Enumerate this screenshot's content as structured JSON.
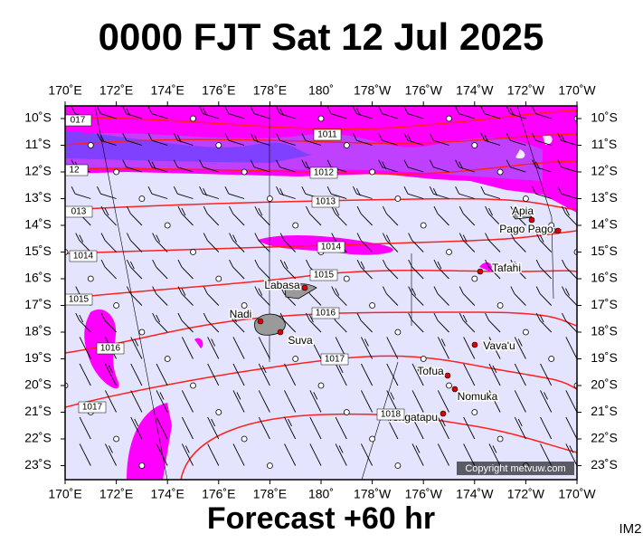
{
  "header": {
    "title": "0000 FJT Sat 12 Jul 2025"
  },
  "axes": {
    "x_labels": [
      "170˚E",
      "172˚E",
      "174˚E",
      "176˚E",
      "178˚E",
      "180˚",
      "178˚W",
      "176˚W",
      "174˚W",
      "172˚W",
      "170˚W"
    ],
    "y_labels": [
      "10˚S",
      "11˚S",
      "12˚S",
      "13˚S",
      "14˚S",
      "15˚S",
      "16˚S",
      "17˚S",
      "18˚S",
      "19˚S",
      "20˚S",
      "21˚S",
      "22˚S",
      "23˚S"
    ]
  },
  "places": [
    "Apia",
    "Pago Pago",
    "Tafahi",
    "Labasa",
    "Nadi",
    "Suva",
    "Vava'u",
    "Tofua",
    "Nomuka",
    "Tongatapu"
  ],
  "isobar_labels": [
    "1011",
    "017",
    "12",
    "1012",
    "013",
    "1013",
    "1014",
    "1014",
    "1015",
    "1015",
    "1016",
    "1016",
    "1017",
    "1017",
    "1018"
  ],
  "copyright": "Copyright metvuw.com",
  "footer": {
    "forecast": "Forecast +60 hr",
    "code": "IM2"
  }
}
